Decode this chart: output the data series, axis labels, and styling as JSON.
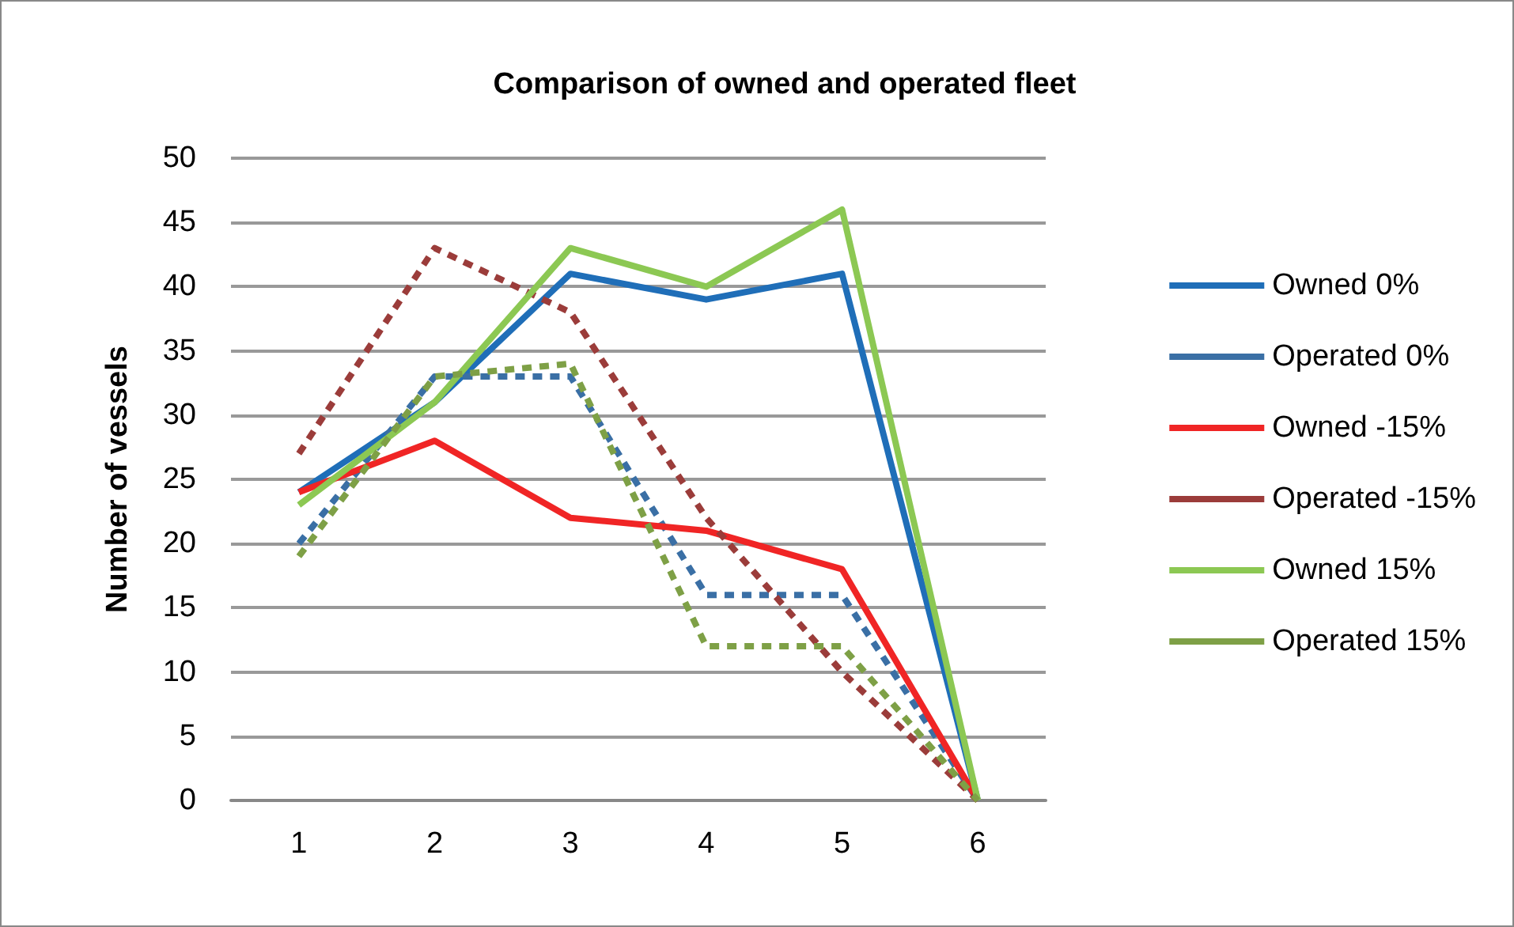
{
  "chart_data": {
    "type": "line",
    "title": "Comparison of owned and operated fleet",
    "ylabel": "Number of vessels",
    "categories": [
      "1",
      "2",
      "3",
      "4",
      "5",
      "6"
    ],
    "series": [
      {
        "name": "Owned 0%",
        "color": "#1f6eb8",
        "line_style": "solid",
        "values": [
          24,
          31,
          41,
          39,
          41,
          0
        ]
      },
      {
        "name": "Operated 0%",
        "color": "#3a6fa5",
        "line_style": "dashed",
        "values": [
          20,
          33,
          33,
          16,
          16,
          0
        ]
      },
      {
        "name": "Owned -15%",
        "color": "#f02525",
        "line_style": "solid",
        "values": [
          24,
          28,
          22,
          21,
          18,
          0
        ]
      },
      {
        "name": "Operated -15%",
        "color": "#9b3c3a",
        "line_style": "dashed",
        "values": [
          27,
          43,
          38,
          22,
          10,
          0
        ]
      },
      {
        "name": "Owned 15%",
        "color": "#8cc853",
        "line_style": "solid",
        "values": [
          23,
          31,
          43,
          40,
          46,
          0
        ]
      },
      {
        "name": "Operated 15%",
        "color": "#7ea046",
        "line_style": "dashed",
        "values": [
          19,
          33,
          34,
          12,
          12,
          0
        ]
      }
    ],
    "ylim": [
      0,
      50
    ],
    "yticks": [
      0,
      5,
      10,
      15,
      20,
      25,
      30,
      35,
      40,
      45,
      50
    ],
    "grid": "y",
    "legend": "right",
    "marker": "none"
  }
}
